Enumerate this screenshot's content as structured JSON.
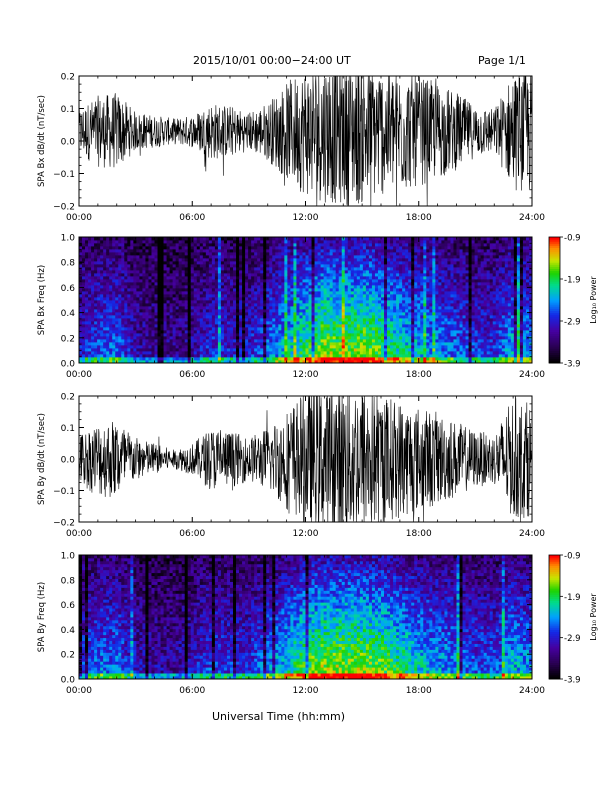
{
  "header": {
    "date_range": "2015/10/01   00:00−24:00 UT",
    "page": "Page 1/1"
  },
  "footer": {
    "xlabel": "Universal Time (hh:mm)"
  },
  "colorbar": {
    "label": "Log₁₀ Power",
    "ticks": [
      "-0.9",
      "-1.9",
      "-2.9",
      "-3.9"
    ],
    "range": [
      -3.9,
      -0.9
    ]
  },
  "chart_data": [
    {
      "type": "line",
      "ylabel": "SPA Bx dB/dt (nT/sec)",
      "ylim": [
        -0.2,
        0.2
      ],
      "yticks": [
        "0.2",
        "0.1",
        "0.0",
        "−0.1",
        "−0.2"
      ],
      "xlim": [
        0,
        24
      ],
      "xticks": [
        "00:00",
        "06:00",
        "12:00",
        "18:00",
        "24:00"
      ],
      "series": [
        {
          "x": [
            0,
            1,
            2,
            3,
            4,
            5,
            6,
            7,
            8,
            9,
            10,
            11,
            12,
            13,
            14,
            15,
            16,
            17,
            18,
            19,
            20,
            21,
            22,
            23,
            24
          ],
          "baseline": [
            0.03,
            0.03,
            0.03,
            0.03,
            0.03,
            0.03,
            0.03,
            0.03,
            0.03,
            0.03,
            0.03,
            0.03,
            0.03,
            0.03,
            0.03,
            0.03,
            0.03,
            0.03,
            0.03,
            0.03,
            0.03,
            0.03,
            0.03,
            0.03,
            0.03
          ],
          "amplitude": [
            0.07,
            0.11,
            0.12,
            0.06,
            0.05,
            0.04,
            0.05,
            0.09,
            0.08,
            0.06,
            0.09,
            0.15,
            0.2,
            0.22,
            0.23,
            0.23,
            0.2,
            0.19,
            0.17,
            0.15,
            0.12,
            0.08,
            0.07,
            0.18,
            0.2
          ]
        }
      ]
    },
    {
      "type": "heatmap",
      "ylabel": "SPA Bx Freq (Hz)",
      "ylim": [
        0,
        1
      ],
      "yticks": [
        "1.0",
        "0.8",
        "0.6",
        "0.4",
        "0.2",
        "0.0"
      ],
      "xlim": [
        0,
        24
      ],
      "xticks": [
        "00:00",
        "06:00",
        "12:00",
        "18:00",
        "24:00"
      ],
      "activity": [
        0.3,
        0.4,
        0.45,
        0.2,
        0.18,
        0.15,
        0.2,
        0.35,
        0.3,
        0.3,
        0.45,
        0.6,
        0.8,
        0.95,
        0.9,
        0.95,
        0.85,
        0.7,
        0.6,
        0.5,
        0.45,
        0.35,
        0.35,
        0.6,
        0.5
      ]
    },
    {
      "type": "line",
      "ylabel": "SPA By dB/dt (nT/sec)",
      "ylim": [
        -0.2,
        0.2
      ],
      "yticks": [
        "0.2",
        "0.1",
        "0.0",
        "−0.1",
        "−0.2"
      ],
      "xlim": [
        0,
        24
      ],
      "xticks": [
        "00:00",
        "06:00",
        "12:00",
        "18:00",
        "24:00"
      ],
      "series": [
        {
          "x": [
            0,
            1,
            2,
            3,
            4,
            5,
            6,
            7,
            8,
            9,
            10,
            11,
            12,
            13,
            14,
            15,
            16,
            17,
            18,
            19,
            20,
            21,
            22,
            23,
            24
          ],
          "baseline": [
            0.0,
            0.0,
            0.0,
            0.0,
            0.0,
            0.0,
            0.0,
            0.0,
            0.0,
            0.0,
            0.0,
            0.0,
            0.0,
            0.0,
            0.0,
            0.0,
            0.0,
            0.0,
            0.0,
            0.0,
            0.0,
            0.0,
            0.0,
            0.0,
            0.0
          ],
          "amplitude": [
            0.08,
            0.12,
            0.13,
            0.07,
            0.05,
            0.03,
            0.05,
            0.1,
            0.09,
            0.07,
            0.1,
            0.16,
            0.22,
            0.24,
            0.25,
            0.25,
            0.21,
            0.19,
            0.17,
            0.15,
            0.12,
            0.09,
            0.08,
            0.2,
            0.18
          ]
        }
      ]
    },
    {
      "type": "heatmap",
      "ylabel": "SPA By Freq (Hz)",
      "ylim": [
        0,
        1
      ],
      "yticks": [
        "1.0",
        "0.8",
        "0.6",
        "0.4",
        "0.2",
        "0.0"
      ],
      "xlim": [
        0,
        24
      ],
      "xticks": [
        "00:00",
        "06:00",
        "12:00",
        "18:00",
        "24:00"
      ],
      "activity": [
        0.35,
        0.45,
        0.5,
        0.25,
        0.2,
        0.18,
        0.25,
        0.4,
        0.35,
        0.35,
        0.5,
        0.65,
        0.85,
        0.95,
        0.95,
        0.95,
        0.9,
        0.75,
        0.65,
        0.55,
        0.5,
        0.4,
        0.4,
        0.6,
        0.5
      ]
    }
  ]
}
